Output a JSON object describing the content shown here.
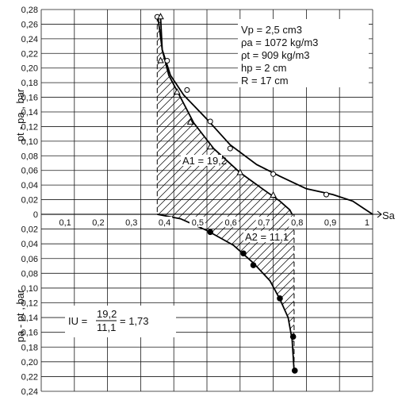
{
  "chart_data": {
    "type": "line",
    "xlabel": "Sa",
    "ylabel_top": "pt - pa , bar",
    "ylabel_bottom": "pa - pt , bar",
    "xlim": [
      0,
      1
    ],
    "ylim_top": [
      0,
      0.28
    ],
    "ylim_bottom": [
      0,
      0.24
    ],
    "x_ticks": [
      "0,1",
      "0,2",
      "0,3",
      "0,4",
      "0,5",
      "0,6",
      "0,7",
      "0,8",
      "0,9",
      "1"
    ],
    "y_ticks_top": [
      "0,28",
      "0,26",
      "0,24",
      "0,22",
      "0,20",
      "0,18",
      "0,16",
      "0,14",
      "0,12",
      "0,10",
      "0,08",
      "0,06",
      "0,04",
      "0,02",
      "0"
    ],
    "y_ticks_bottom": [
      "0,02",
      "0,04",
      "0,06",
      "0,08",
      "0,10",
      "0,12",
      "0,14",
      "0,16",
      "0,18",
      "0,20",
      "0,22",
      "0,24"
    ],
    "legend": [
      "Vp = 2,5 cm3",
      "ρa = 1072 kg/m3",
      "ρt = 909 kg/m3",
      "hp = 2 cm",
      "R = 17 cm"
    ],
    "annotations": {
      "a1": "A1 = 19,2",
      "a2": "A2 = 11,1",
      "iu_prefix": "IU =",
      "iu_num": "19,2",
      "iu_den": "11,1",
      "iu_result": "= 1,73"
    },
    "series": [
      {
        "marker": "circle",
        "points": [
          [
            0.35,
            0.27
          ],
          [
            0.38,
            0.21
          ],
          [
            0.44,
            0.17
          ],
          [
            0.51,
            0.127
          ],
          [
            0.57,
            0.09
          ],
          [
            0.7,
            0.055
          ],
          [
            0.86,
            0.027
          ]
        ],
        "curve": [
          [
            0.352,
            0.27
          ],
          [
            0.365,
            0.225
          ],
          [
            0.39,
            0.19
          ],
          [
            0.43,
            0.163
          ],
          [
            0.5,
            0.13
          ],
          [
            0.57,
            0.095
          ],
          [
            0.65,
            0.068
          ],
          [
            0.72,
            0.052
          ],
          [
            0.8,
            0.035
          ],
          [
            0.88,
            0.027
          ],
          [
            0.94,
            0.018
          ],
          [
            0.98,
            0.006
          ],
          [
            1.0,
            0
          ]
        ]
      },
      {
        "marker": "triangle",
        "points": [
          [
            0.36,
            0.27
          ],
          [
            0.36,
            0.21
          ],
          [
            0.41,
            0.167
          ],
          [
            0.45,
            0.126
          ],
          [
            0.51,
            0.092
          ],
          [
            0.6,
            0.057
          ],
          [
            0.7,
            0.026
          ]
        ],
        "curve": [
          [
            0.36,
            0.27
          ],
          [
            0.365,
            0.225
          ],
          [
            0.385,
            0.19
          ],
          [
            0.42,
            0.16
          ],
          [
            0.46,
            0.125
          ],
          [
            0.52,
            0.09
          ],
          [
            0.6,
            0.057
          ],
          [
            0.67,
            0.034
          ],
          [
            0.72,
            0.018
          ],
          [
            0.75,
            0.006
          ],
          [
            0.757,
            0
          ]
        ]
      },
      {
        "marker": "filled-circle",
        "points": [
          [
            0.51,
            0.024
          ],
          [
            0.61,
            0.053
          ],
          [
            0.64,
            0.069
          ],
          [
            0.72,
            0.114
          ],
          [
            0.76,
            0.166
          ],
          [
            0.765,
            0.212
          ]
        ],
        "curve": [
          [
            0.35,
            0
          ],
          [
            0.42,
            0.006
          ],
          [
            0.5,
            0.022
          ],
          [
            0.58,
            0.042
          ],
          [
            0.64,
            0.066
          ],
          [
            0.69,
            0.09
          ],
          [
            0.72,
            0.115
          ],
          [
            0.745,
            0.14
          ],
          [
            0.757,
            0.17
          ],
          [
            0.763,
            0.212
          ]
        ]
      }
    ],
    "areas": [
      {
        "name": "A1",
        "x_from": 0.35,
        "x_to": 0.757,
        "value": 19.2
      },
      {
        "name": "A2",
        "x_from": 0.35,
        "x_to": 0.763,
        "value": 11.1
      }
    ]
  }
}
